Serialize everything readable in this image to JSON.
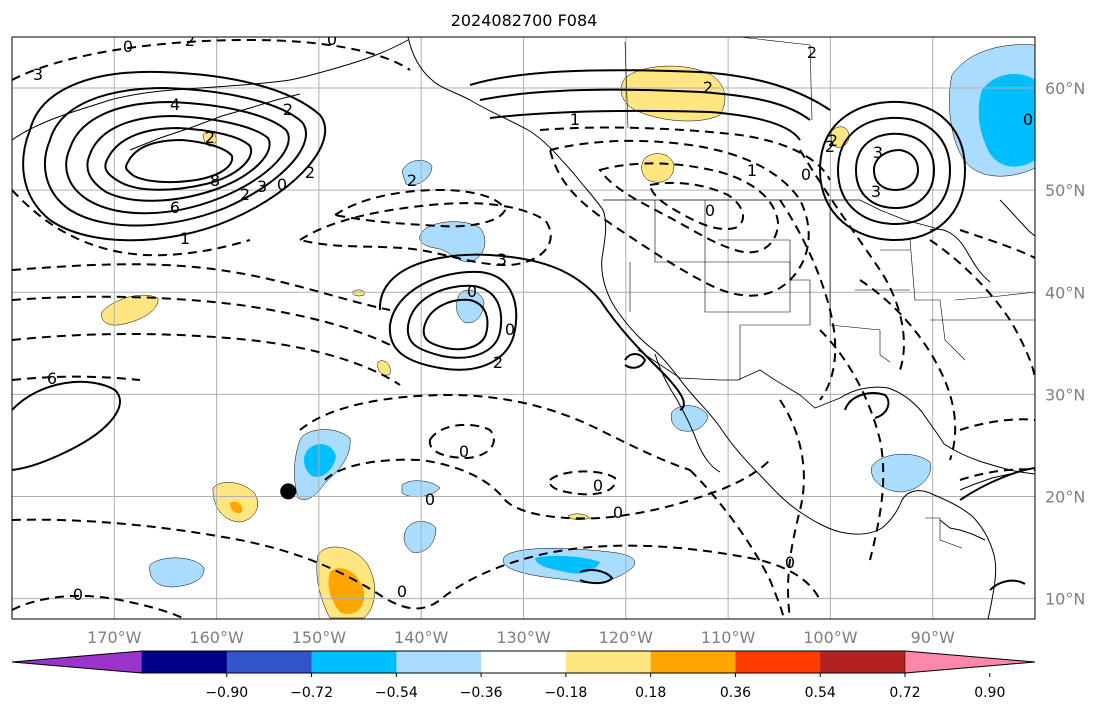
{
  "title": "2024082700 F084",
  "map": {
    "lon_range": [
      -180,
      -80
    ],
    "lat_range": [
      8,
      65
    ],
    "grid": true,
    "lon_ticks": [
      "170°W",
      "160°W",
      "150°W",
      "140°W",
      "130°W",
      "120°W",
      "110°W",
      "100°W",
      "90°W"
    ],
    "lat_ticks": [
      "60°N",
      "50°N",
      "40°N",
      "30°N",
      "20°N",
      "10°N"
    ],
    "marker": {
      "lon": -153,
      "lat": 20.5,
      "color": "#000000"
    }
  },
  "contour_labels": [
    "0",
    "2",
    "3",
    "4",
    "6",
    "8",
    "2",
    "3",
    "0",
    "2",
    "1",
    "2",
    "0",
    "2",
    "3",
    "0",
    "0",
    "2",
    "2",
    "1",
    "0",
    "2",
    "2",
    "1",
    "0",
    "0",
    "3",
    "2",
    "3",
    "2",
    "6",
    "0",
    "0",
    "0",
    "0",
    "0",
    "0",
    "0"
  ],
  "colorbar": {
    "ticks": [
      "−0.90",
      "−0.72",
      "−0.54",
      "−0.36",
      "−0.18",
      "0.18",
      "0.36",
      "0.54",
      "0.72",
      "0.90"
    ],
    "colors": [
      "#9933cc",
      "#000088",
      "#3355cc",
      "#00bfff",
      "#aadcff",
      "#ffffff",
      "#ffe680",
      "#ffa500",
      "#ff3c00",
      "#b22222",
      "#ff88aa"
    ]
  }
}
